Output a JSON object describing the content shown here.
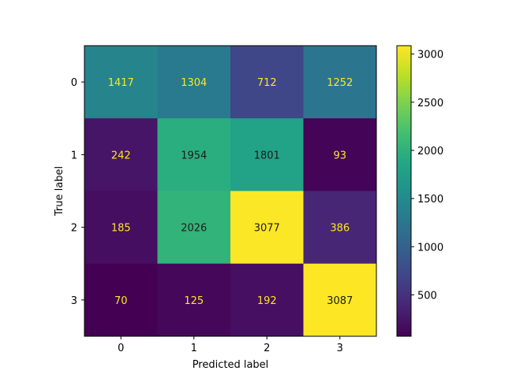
{
  "chart_data": {
    "type": "heatmap",
    "title": "",
    "xlabel": "Predicted label",
    "ylabel": "True label",
    "x_categories": [
      "0",
      "1",
      "2",
      "3"
    ],
    "y_categories": [
      "0",
      "1",
      "2",
      "3"
    ],
    "matrix": [
      [
        1417,
        1304,
        712,
        1252
      ],
      [
        242,
        1954,
        1801,
        93
      ],
      [
        185,
        2026,
        3077,
        386
      ],
      [
        70,
        125,
        192,
        3087
      ]
    ],
    "colormap": "viridis",
    "colorbar": {
      "min": 70,
      "max": 3087,
      "ticks": [
        500,
        1000,
        1500,
        2000,
        2500,
        3000
      ],
      "tick_labels": [
        "500",
        "1000",
        "1500",
        "2000",
        "2500",
        "3000"
      ]
    },
    "text_color_light": "#fde725",
    "text_color_dark": "#1b1b1b"
  }
}
